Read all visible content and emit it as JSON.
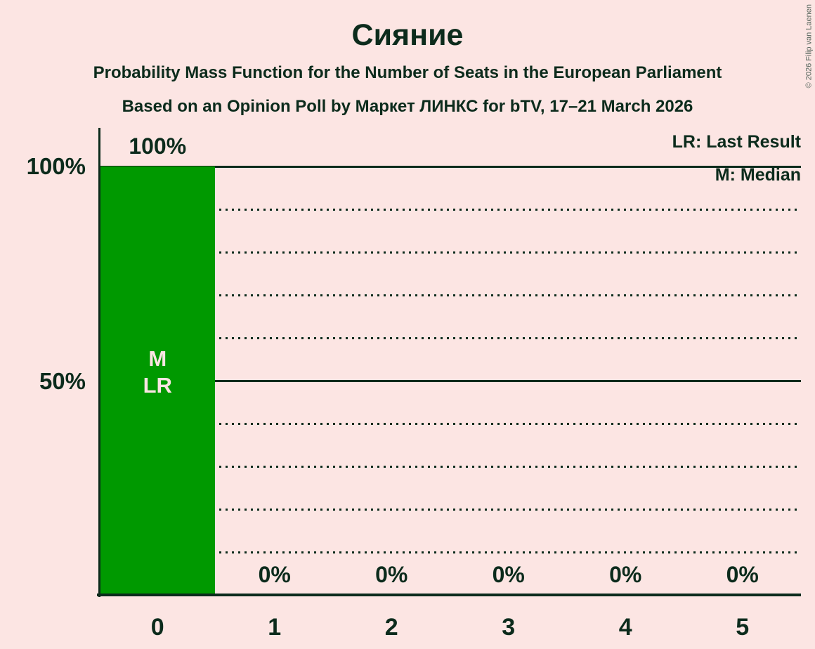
{
  "title": "Сияние",
  "subtitle1": "Probability Mass Function for the Number of Seats in the European Parliament",
  "subtitle2": "Based on an Opinion Poll by Маркет ЛИНКС for bTV, 17–21 March 2026",
  "copyright": "© 2026 Filip van Laenen",
  "legend": {
    "last_result": "LR: Last Result",
    "median": "M: Median"
  },
  "y_axis": {
    "labels": [
      "100%",
      "50%"
    ]
  },
  "bar_annotations": {
    "median": "M",
    "last_result": "LR"
  },
  "colors": {
    "background": "#fce5e3",
    "bar": "#009900",
    "text": "#0c2b1c",
    "bar_text": "#fce5e3"
  },
  "chart_data": {
    "type": "bar",
    "title": "Сияние",
    "categories": [
      "0",
      "1",
      "2",
      "3",
      "4",
      "5"
    ],
    "values": [
      100,
      0,
      0,
      0,
      0,
      0
    ],
    "value_labels": [
      "100%",
      "0%",
      "0%",
      "0%",
      "0%",
      "0%"
    ],
    "ylim": [
      0,
      100
    ],
    "gridlines_pct": [
      10,
      20,
      30,
      40,
      50,
      60,
      70,
      80,
      90,
      100
    ],
    "solid_gridlines_pct": [
      50,
      100
    ],
    "grid": true,
    "legend_position": "top-right",
    "median_category": "0",
    "last_result_category": "0"
  }
}
